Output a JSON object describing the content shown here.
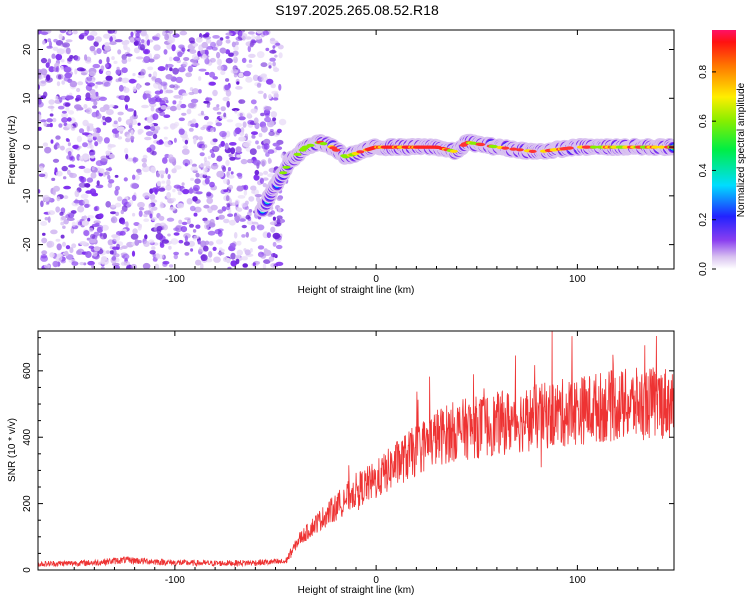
{
  "title": "S197.2025.265.08.52.R18",
  "chart_data": [
    {
      "type": "heatmap",
      "xlabel": "Height of straight line (km)",
      "ylabel": "Frequency (Hz)",
      "xlim": [
        -168,
        148
      ],
      "ylim": [
        -25,
        24
      ],
      "xticks": [
        -100,
        0,
        100
      ],
      "xtick_labels": [
        "-100",
        "0",
        "100"
      ],
      "yticks": [
        -20,
        -10,
        0,
        10,
        20
      ],
      "ytick_labels": [
        "-20",
        "-10",
        "0",
        "10",
        "20"
      ],
      "noise_region_x": [
        -168,
        -47
      ],
      "signal_track": {
        "x": [
          -57,
          -50,
          -43,
          -35,
          -28,
          -22,
          -15,
          -8,
          0,
          15,
          30,
          40,
          45,
          60,
          80,
          100,
          120,
          148
        ],
        "y": [
          -13,
          -8,
          -3,
          0,
          1,
          0,
          -2,
          -1,
          0,
          0,
          0,
          -1,
          1,
          0,
          -1,
          0,
          0,
          0
        ]
      },
      "colorbar": {
        "label": "Normalized spectral amplitude",
        "ticks": [
          0.0,
          0.2,
          0.4,
          0.6,
          0.8
        ],
        "tick_labels": [
          "0.0",
          "0.2",
          "0.4",
          "0.6",
          "0.8"
        ],
        "range": [
          0,
          0.97
        ]
      }
    },
    {
      "type": "line",
      "xlabel": "Height of straight line (km)",
      "ylabel": "SNR (10 * v/v)",
      "xlim": [
        -168,
        148
      ],
      "ylim": [
        0,
        720
      ],
      "xticks": [
        -100,
        0,
        100
      ],
      "xtick_labels": [
        "-100",
        "0",
        "100"
      ],
      "yticks": [
        0,
        200,
        400,
        600
      ],
      "ytick_labels": [
        "0",
        "200",
        "400",
        "600"
      ],
      "color": "#ee3333",
      "series": [
        {
          "name": "SNR",
          "x": [
            -168,
            -140,
            -125,
            -100,
            -80,
            -60,
            -45,
            -38,
            -35,
            -30,
            -20,
            -10,
            0,
            10,
            20,
            30,
            40,
            50,
            60,
            70,
            80,
            90,
            100,
            110,
            120,
            130,
            140,
            148
          ],
          "values": [
            18,
            22,
            30,
            22,
            20,
            22,
            25,
            95,
            110,
            140,
            190,
            240,
            270,
            320,
            360,
            400,
            420,
            430,
            440,
            450,
            460,
            470,
            480,
            490,
            495,
            500,
            505,
            505
          ]
        }
      ]
    }
  ]
}
